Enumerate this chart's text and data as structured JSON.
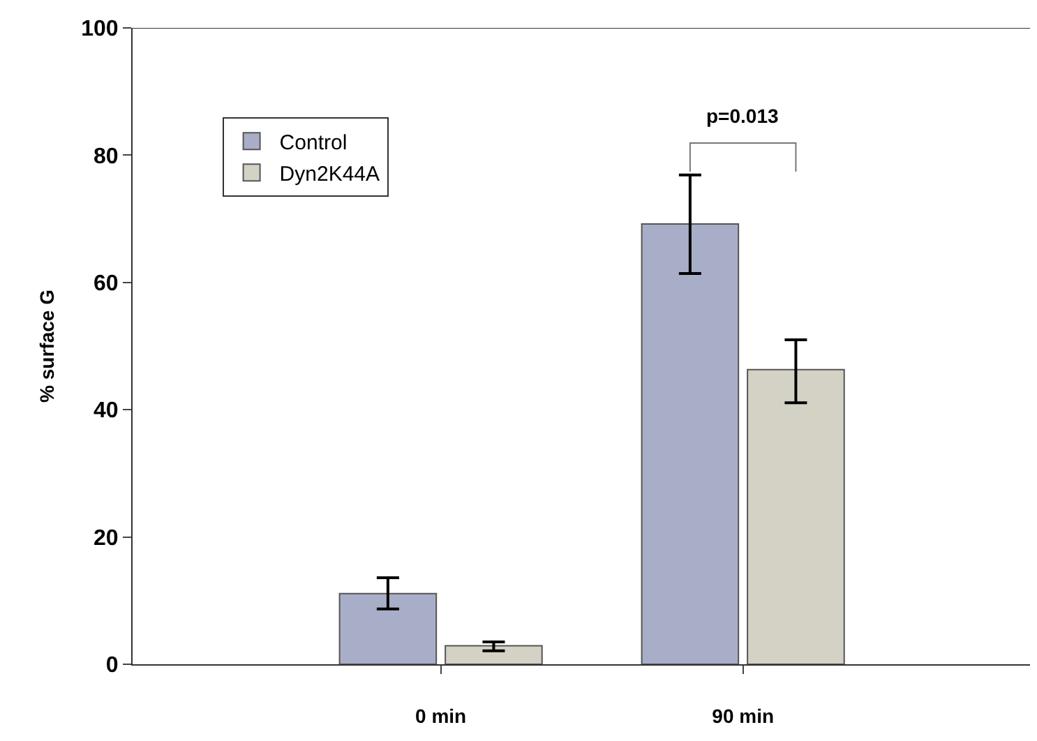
{
  "chart_data": {
    "type": "bar",
    "ylabel": "% surface G",
    "categories": [
      "0 min",
      "90 min"
    ],
    "series": [
      {
        "name": "Control",
        "color": "#a9aec8",
        "values": [
          11.1,
          69.2
        ],
        "errors": [
          [
            8.7,
            13.6
          ],
          [
            61.4,
            76.9
          ]
        ]
      },
      {
        "name": "Dyn2K44A",
        "color": "#d3d2c5",
        "values": [
          2.9,
          46.3
        ],
        "errors": [
          [
            2.1,
            3.5
          ],
          [
            41.1,
            51.0
          ]
        ]
      }
    ],
    "annotations": [
      "p=0.013"
    ],
    "ylim": [
      0,
      100
    ],
    "yticks": [
      0,
      20,
      40,
      60,
      80,
      100
    ],
    "legend": "top left"
  }
}
